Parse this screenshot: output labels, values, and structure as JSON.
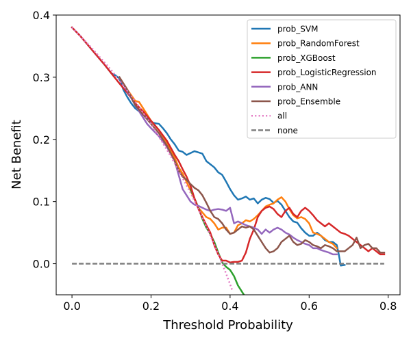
{
  "chart_data": {
    "type": "line",
    "title": "",
    "xlabel": "Threshold Probability",
    "ylabel": "Net Benefit",
    "xlim": [
      -0.04,
      0.83
    ],
    "ylim": [
      -0.05,
      0.4
    ],
    "xticks": [
      0.0,
      0.2,
      0.4,
      0.6,
      0.8
    ],
    "xtick_labels": [
      "0.0",
      "0.2",
      "0.4",
      "0.6",
      "0.8"
    ],
    "yticks": [
      0.0,
      0.1,
      0.2,
      0.3,
      0.4
    ],
    "ytick_labels": [
      "0.0",
      "0.1",
      "0.2",
      "0.3",
      "0.4"
    ],
    "grid": false,
    "legend_position": "top-right",
    "series": [
      {
        "name": "prob_SVM",
        "color": "#1f77b4",
        "style": "solid",
        "x": [
          0.0,
          0.02,
          0.04,
          0.06,
          0.08,
          0.1,
          0.11,
          0.12,
          0.13,
          0.14,
          0.15,
          0.16,
          0.17,
          0.18,
          0.19,
          0.2,
          0.21,
          0.22,
          0.23,
          0.24,
          0.25,
          0.26,
          0.27,
          0.28,
          0.29,
          0.3,
          0.31,
          0.32,
          0.33,
          0.34,
          0.35,
          0.36,
          0.37,
          0.38,
          0.39,
          0.4,
          0.41,
          0.42,
          0.43,
          0.44,
          0.45,
          0.46,
          0.47,
          0.48,
          0.49,
          0.5,
          0.51,
          0.52,
          0.53,
          0.54,
          0.55,
          0.56,
          0.57,
          0.58,
          0.59,
          0.6,
          0.61,
          0.62,
          0.63,
          0.64,
          0.65,
          0.66,
          0.67,
          0.675,
          0.68,
          0.69
        ],
        "y": [
          0.38,
          0.367,
          0.352,
          0.337,
          0.322,
          0.306,
          0.303,
          0.298,
          0.28,
          0.268,
          0.258,
          0.25,
          0.245,
          0.24,
          0.234,
          0.228,
          0.226,
          0.225,
          0.218,
          0.21,
          0.2,
          0.192,
          0.182,
          0.18,
          0.175,
          0.178,
          0.181,
          0.179,
          0.177,
          0.165,
          0.16,
          0.155,
          0.147,
          0.143,
          0.132,
          0.12,
          0.11,
          0.103,
          0.105,
          0.108,
          0.103,
          0.105,
          0.097,
          0.103,
          0.106,
          0.104,
          0.098,
          0.101,
          0.095,
          0.085,
          0.075,
          0.068,
          0.066,
          0.057,
          0.05,
          0.045,
          0.045,
          0.05,
          0.045,
          0.038,
          0.035,
          0.035,
          0.03,
          0.015,
          -0.003,
          -0.002
        ]
      },
      {
        "name": "prob_RandomForest",
        "color": "#ff7f0e",
        "style": "solid",
        "x": [
          0.12,
          0.14,
          0.16,
          0.17,
          0.18,
          0.2,
          0.22,
          0.24,
          0.26,
          0.27,
          0.28,
          0.3,
          0.32,
          0.34,
          0.35,
          0.36,
          0.37,
          0.38,
          0.39,
          0.4,
          0.41,
          0.42,
          0.43,
          0.44,
          0.45,
          0.46,
          0.47,
          0.48,
          0.49,
          0.5,
          0.51,
          0.52,
          0.53,
          0.54,
          0.55,
          0.56,
          0.57,
          0.58,
          0.59,
          0.6,
          0.61,
          0.62,
          0.63,
          0.64,
          0.65,
          0.66,
          0.67
        ],
        "y": [
          0.3,
          0.28,
          0.262,
          0.26,
          0.25,
          0.23,
          0.215,
          0.195,
          0.17,
          0.155,
          0.145,
          0.118,
          0.09,
          0.075,
          0.072,
          0.065,
          0.055,
          0.058,
          0.058,
          0.048,
          0.05,
          0.062,
          0.065,
          0.07,
          0.068,
          0.072,
          0.078,
          0.085,
          0.092,
          0.095,
          0.097,
          0.103,
          0.107,
          0.1,
          0.088,
          0.078,
          0.073,
          0.075,
          0.072,
          0.065,
          0.05,
          0.048,
          0.045,
          0.04,
          0.035,
          0.032,
          0.025
        ]
      },
      {
        "name": "prob_XGBoost",
        "color": "#2ca02c",
        "style": "solid",
        "x": [
          0.3,
          0.31,
          0.32,
          0.33,
          0.34,
          0.35,
          0.36,
          0.37,
          0.38,
          0.39,
          0.4,
          0.41,
          0.42,
          0.43,
          0.435
        ],
        "y": [
          0.12,
          0.105,
          0.09,
          0.072,
          0.058,
          0.048,
          0.035,
          0.018,
          0.002,
          -0.005,
          -0.01,
          -0.02,
          -0.035,
          -0.045,
          -0.05
        ]
      },
      {
        "name": "prob_LogisticRegression",
        "color": "#d62728",
        "style": "solid",
        "x": [
          0.0,
          0.02,
          0.04,
          0.06,
          0.08,
          0.1,
          0.12,
          0.14,
          0.16,
          0.18,
          0.2,
          0.22,
          0.24,
          0.26,
          0.27,
          0.28,
          0.29,
          0.3,
          0.31,
          0.32,
          0.33,
          0.34,
          0.35,
          0.36,
          0.37,
          0.38,
          0.39,
          0.4,
          0.41,
          0.42,
          0.43,
          0.44,
          0.45,
          0.46,
          0.47,
          0.48,
          0.49,
          0.5,
          0.51,
          0.52,
          0.53,
          0.54,
          0.55,
          0.56,
          0.57,
          0.58,
          0.59,
          0.6,
          0.61,
          0.62,
          0.63,
          0.64,
          0.65,
          0.66,
          0.67,
          0.68,
          0.69,
          0.7,
          0.71,
          0.72,
          0.73,
          0.74,
          0.75,
          0.76,
          0.77,
          0.78,
          0.79
        ],
        "y": [
          0.38,
          0.367,
          0.352,
          0.337,
          0.322,
          0.306,
          0.29,
          0.275,
          0.258,
          0.245,
          0.23,
          0.215,
          0.198,
          0.175,
          0.165,
          0.152,
          0.14,
          0.125,
          0.105,
          0.088,
          0.075,
          0.062,
          0.05,
          0.03,
          0.015,
          0.005,
          0.005,
          0.002,
          0.003,
          0.003,
          0.005,
          0.018,
          0.04,
          0.055,
          0.075,
          0.085,
          0.09,
          0.092,
          0.088,
          0.08,
          0.075,
          0.085,
          0.09,
          0.08,
          0.075,
          0.085,
          0.09,
          0.085,
          0.078,
          0.07,
          0.065,
          0.06,
          0.065,
          0.06,
          0.055,
          0.05,
          0.048,
          0.045,
          0.04,
          0.035,
          0.03,
          0.025,
          0.02,
          0.025,
          0.02,
          0.015,
          0.015
        ]
      },
      {
        "name": "prob_ANN",
        "color": "#9467bd",
        "style": "solid",
        "x": [
          0.12,
          0.14,
          0.16,
          0.18,
          0.19,
          0.2,
          0.22,
          0.24,
          0.26,
          0.28,
          0.29,
          0.3,
          0.31,
          0.32,
          0.33,
          0.34,
          0.35,
          0.36,
          0.37,
          0.38,
          0.39,
          0.4,
          0.41,
          0.42,
          0.43,
          0.44,
          0.45,
          0.46,
          0.47,
          0.48,
          0.49,
          0.5,
          0.51,
          0.52,
          0.53,
          0.54,
          0.55,
          0.56,
          0.57,
          0.58,
          0.59,
          0.6,
          0.61,
          0.62,
          0.63,
          0.64,
          0.65,
          0.66,
          0.67
        ],
        "y": [
          0.3,
          0.278,
          0.255,
          0.235,
          0.225,
          0.218,
          0.205,
          0.188,
          0.165,
          0.12,
          0.11,
          0.1,
          0.095,
          0.093,
          0.09,
          0.087,
          0.085,
          0.087,
          0.088,
          0.087,
          0.085,
          0.09,
          0.065,
          0.068,
          0.065,
          0.062,
          0.06,
          0.058,
          0.055,
          0.048,
          0.055,
          0.05,
          0.055,
          0.058,
          0.055,
          0.05,
          0.047,
          0.042,
          0.038,
          0.035,
          0.032,
          0.03,
          0.025,
          0.025,
          0.022,
          0.02,
          0.018,
          0.015,
          0.015
        ]
      },
      {
        "name": "prob_Ensemble",
        "color": "#8c564b",
        "style": "solid",
        "x": [
          0.12,
          0.14,
          0.16,
          0.18,
          0.2,
          0.22,
          0.24,
          0.26,
          0.27,
          0.28,
          0.29,
          0.3,
          0.31,
          0.32,
          0.33,
          0.34,
          0.35,
          0.36,
          0.37,
          0.38,
          0.39,
          0.4,
          0.41,
          0.42,
          0.43,
          0.44,
          0.45,
          0.46,
          0.47,
          0.48,
          0.49,
          0.5,
          0.51,
          0.52,
          0.53,
          0.54,
          0.55,
          0.56,
          0.57,
          0.58,
          0.59,
          0.6,
          0.61,
          0.62,
          0.63,
          0.64,
          0.65,
          0.66,
          0.67,
          0.68,
          0.69,
          0.7,
          0.71,
          0.72,
          0.73,
          0.74,
          0.75,
          0.76,
          0.77,
          0.78,
          0.79
        ],
        "y": [
          0.3,
          0.28,
          0.255,
          0.24,
          0.225,
          0.21,
          0.19,
          0.165,
          0.15,
          0.14,
          0.135,
          0.128,
          0.122,
          0.118,
          0.11,
          0.098,
          0.085,
          0.075,
          0.072,
          0.065,
          0.055,
          0.048,
          0.05,
          0.055,
          0.06,
          0.058,
          0.06,
          0.055,
          0.045,
          0.035,
          0.025,
          0.018,
          0.02,
          0.025,
          0.035,
          0.04,
          0.045,
          0.035,
          0.03,
          0.032,
          0.038,
          0.035,
          0.03,
          0.028,
          0.025,
          0.03,
          0.028,
          0.025,
          0.02,
          0.02,
          0.02,
          0.025,
          0.03,
          0.042,
          0.025,
          0.03,
          0.032,
          0.025,
          0.025,
          0.018,
          0.018
        ]
      },
      {
        "name": "all",
        "color": "#e377c2",
        "style": "dotted",
        "x": [
          0.0,
          0.05,
          0.1,
          0.15,
          0.2,
          0.25,
          0.3,
          0.32,
          0.34,
          0.36,
          0.37,
          0.38,
          0.39,
          0.4,
          0.405
        ],
        "y": [
          0.38,
          0.347,
          0.311,
          0.27,
          0.225,
          0.173,
          0.114,
          0.088,
          0.06,
          0.031,
          0.016,
          0.0,
          -0.016,
          -0.033,
          -0.042
        ]
      },
      {
        "name": "none",
        "color": "#7f7f7f",
        "style": "dashed",
        "x": [
          0.0,
          0.79
        ],
        "y": [
          0.0,
          0.0
        ]
      }
    ]
  }
}
